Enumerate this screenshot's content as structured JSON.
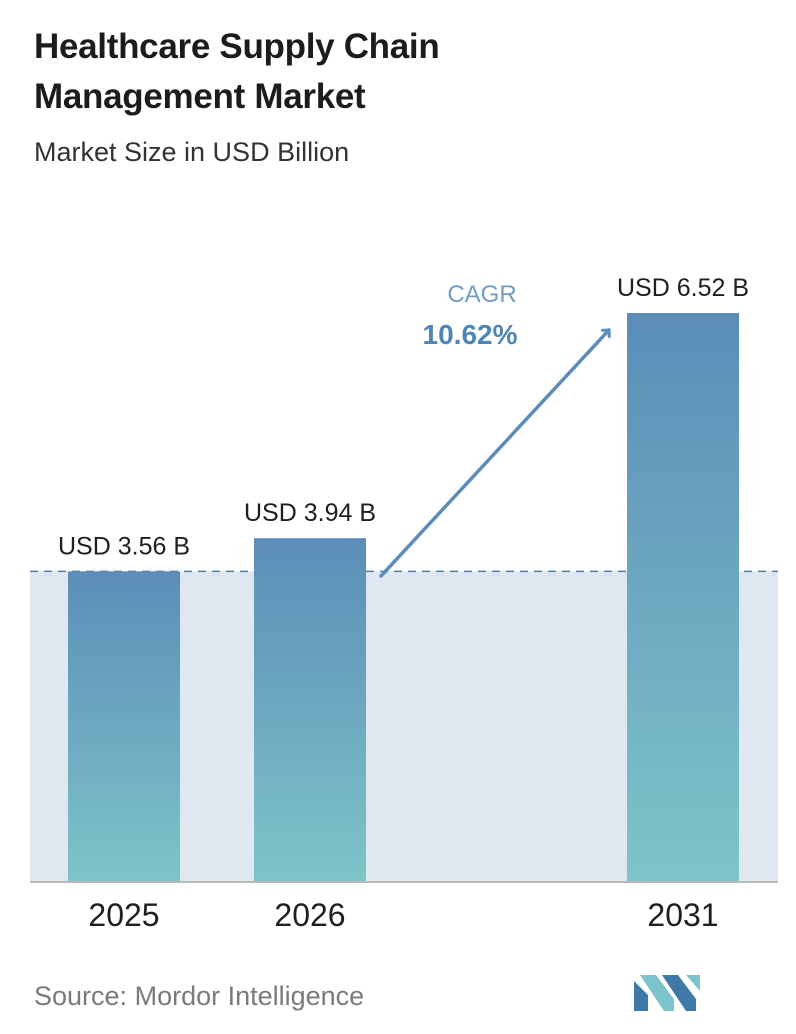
{
  "title_lines": [
    "Healthcare Supply Chain",
    "Management Market"
  ],
  "subtitle": "Market Size in USD Billion",
  "source_label": "Source:",
  "source_name": "Mordor Intelligence",
  "cagr": {
    "label": "CAGR",
    "value": "10.62%"
  },
  "colors": {
    "bar_top": "#5b8db8",
    "bar_bottom": "#7ec4c8",
    "band": "#dfe8f1",
    "baseline_dashed": "#4f7fa8",
    "cagr_label": "#6f9cc3",
    "cagr_value": "#4f85b5",
    "arrow": "#5b8db8",
    "logo_dark": "#3f79a6",
    "logo_light": "#7cc4c9"
  },
  "chart_data": {
    "type": "bar",
    "title": "Healthcare Supply Chain Management Market",
    "subtitle": "Market Size in USD Billion",
    "categories": [
      "2025",
      "2026",
      "2031"
    ],
    "values": [
      3.56,
      3.94,
      6.52
    ],
    "data_labels": [
      "USD 3.56 B",
      "USD 3.94 B",
      "USD 6.52 B"
    ],
    "ylim": [
      0,
      6.52
    ],
    "xlabel": "",
    "ylabel": "",
    "grid": false,
    "reference_line": 3.56,
    "annotation": "CAGR 10.62%"
  }
}
